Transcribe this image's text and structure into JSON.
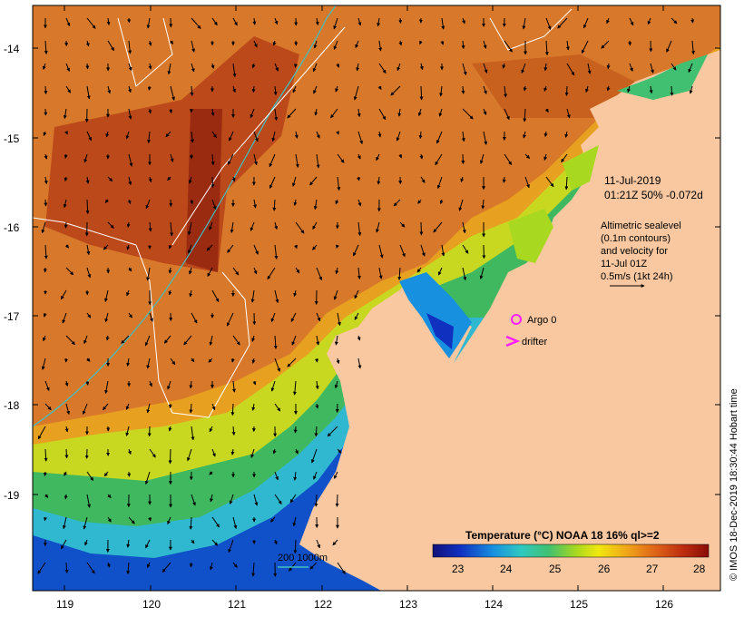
{
  "map": {
    "lat_ticks": [
      "-14",
      "-15",
      "-16",
      "-17",
      "-18",
      "-19"
    ],
    "lon_ticks": [
      "119",
      "120",
      "121",
      "122",
      "123",
      "124",
      "125",
      "126"
    ]
  },
  "annotations": {
    "date": "11-Jul-2019",
    "time_line": "01:21Z  50% -0.072d",
    "altimetry_lines": [
      "Altimetric sealevel",
      "(0.1m contours)",
      "and velocity for",
      "11-Jul 01Z",
      "0.5m/s (1kt 24h)"
    ],
    "argo_label": "Argo 0",
    "drifter_label": "drifter",
    "depth_label": "200  1000m",
    "credit": "© IMOS 18-Dec-2019 18:30:44 Hobart time"
  },
  "colorbar": {
    "title": "Temperature (°C) NOAA 18 16% ql>=2",
    "ticks": [
      "23",
      "24",
      "25",
      "26",
      "27",
      "28"
    ],
    "colors": [
      "#10107a",
      "#1030c0",
      "#1890e0",
      "#30c8c0",
      "#40c070",
      "#a8d820",
      "#f0e810",
      "#f0a818",
      "#e06818",
      "#c03010",
      "#8a0c08"
    ]
  },
  "colors": {
    "land": "#f9c8a0",
    "argo": "#ff20ff",
    "contour_cyan": "#40c0c0",
    "contour_white": "#ffffff"
  }
}
